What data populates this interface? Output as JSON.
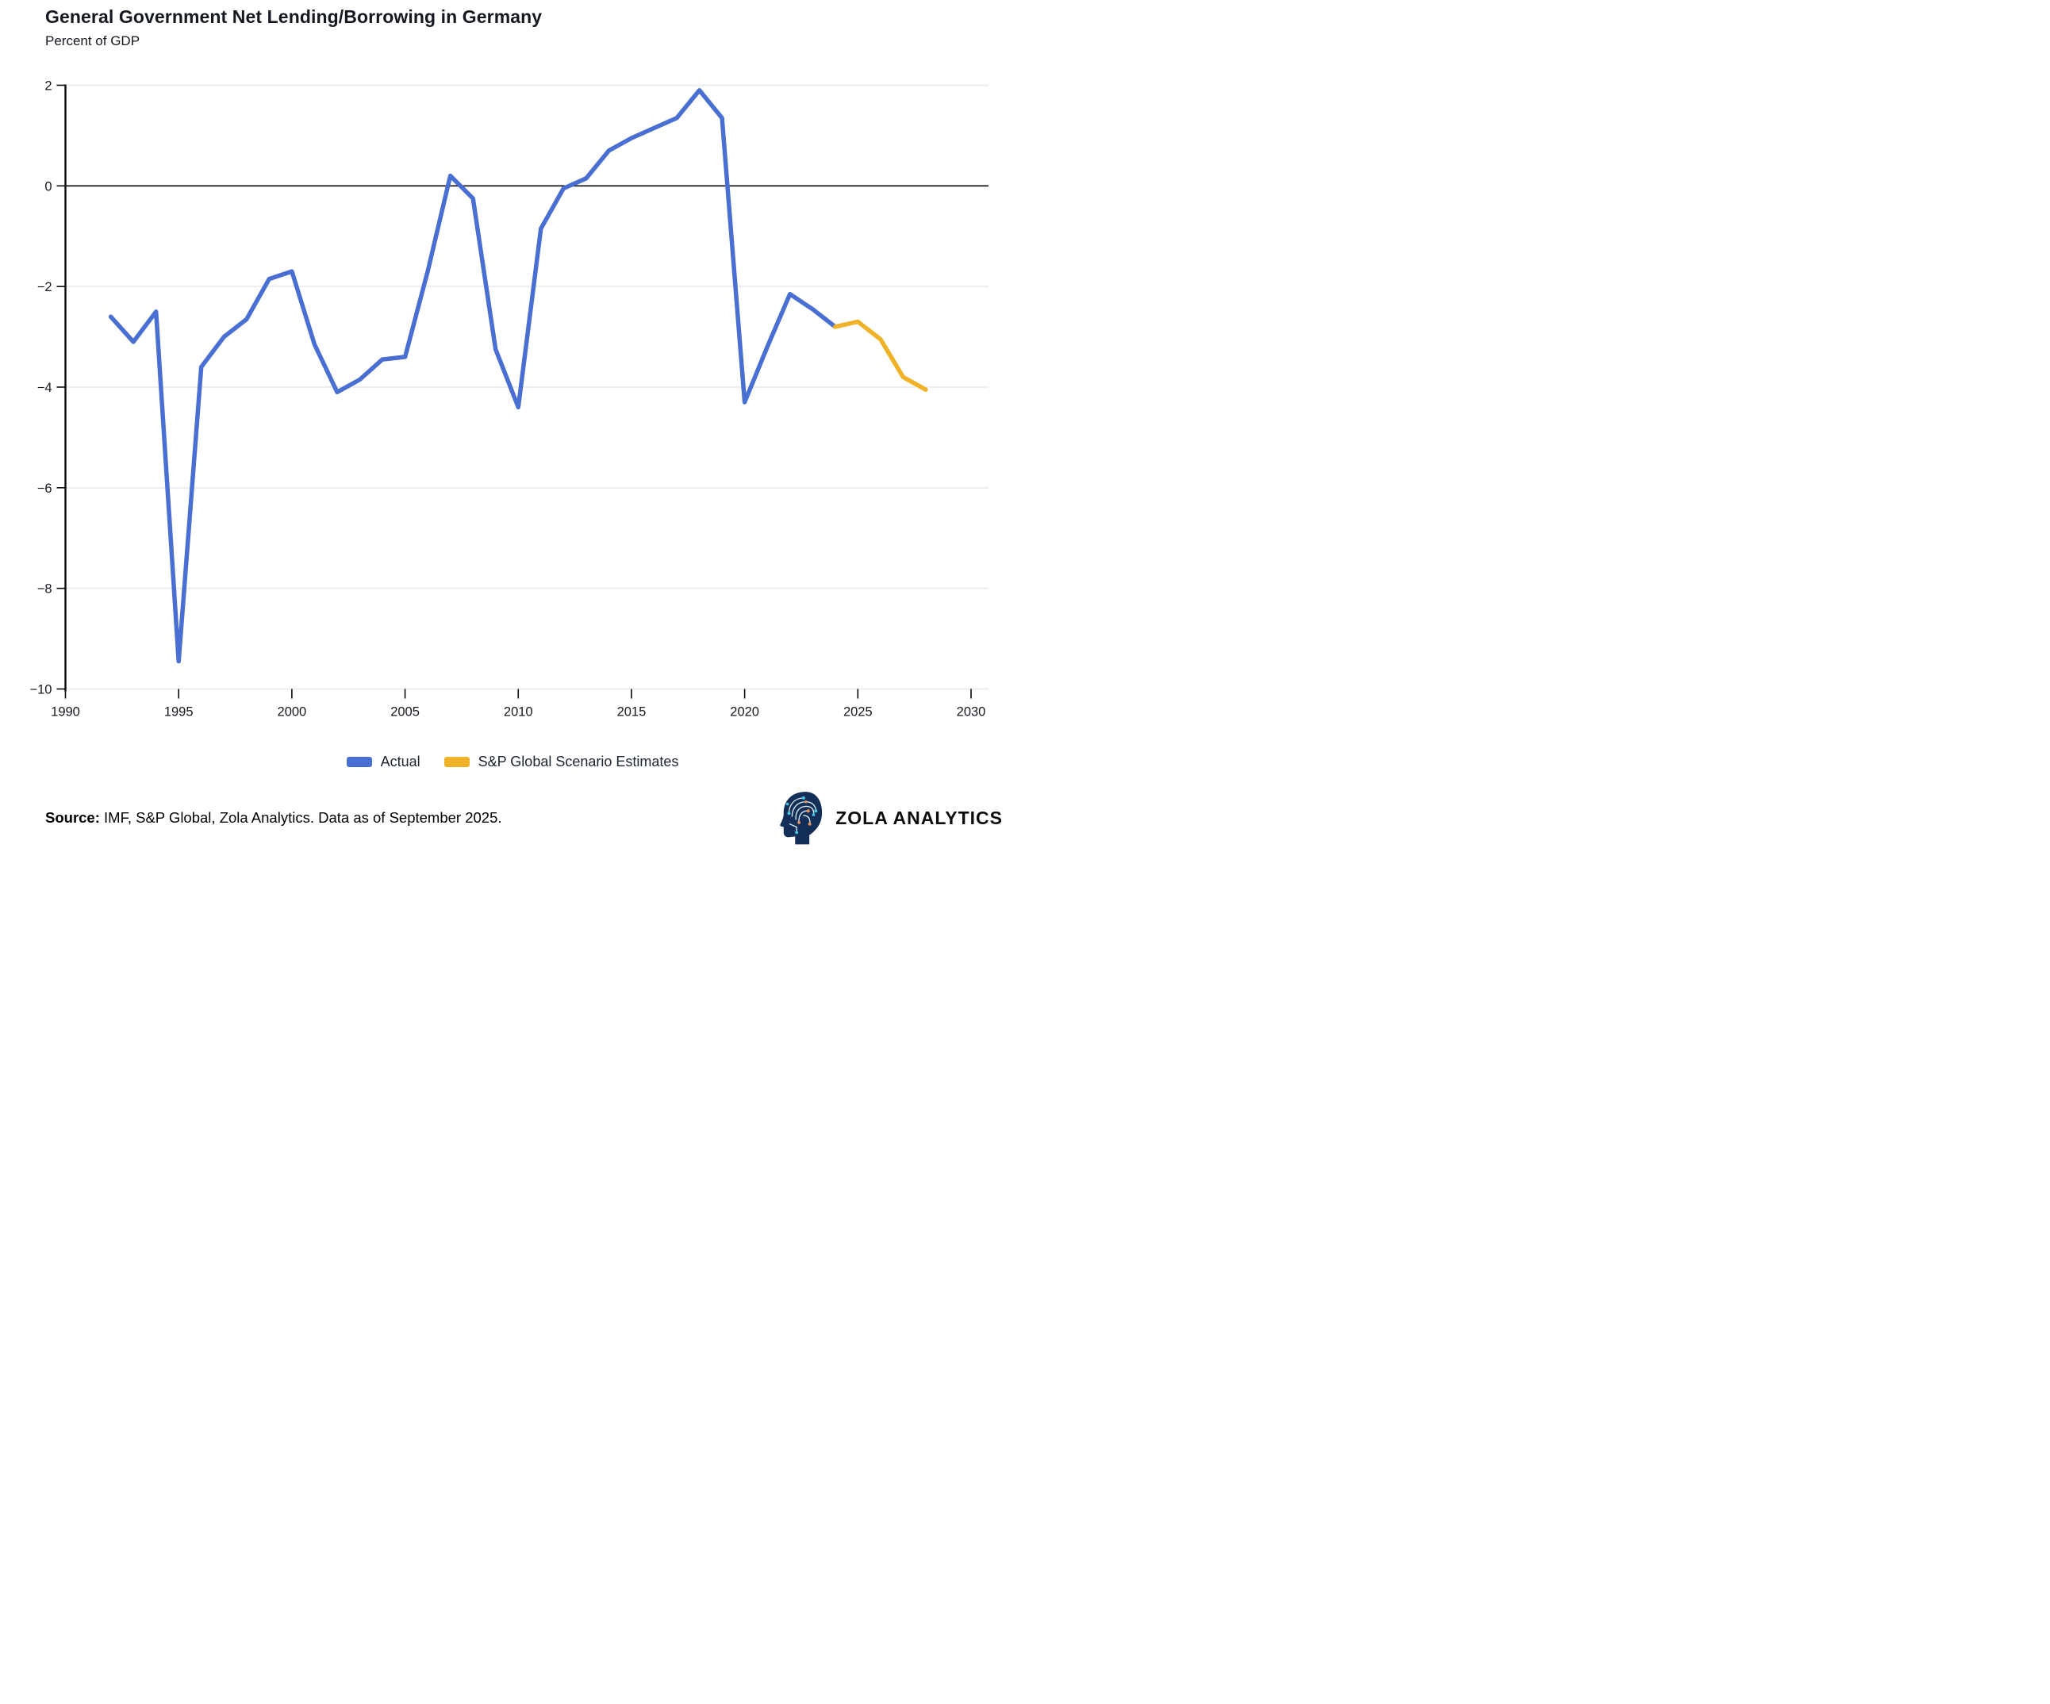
{
  "title": "General Government Net Lending/Borrowing in Germany",
  "subtitle": "Percent of GDP",
  "chart_data": {
    "type": "line",
    "title": "General Government Net Lending/Borrowing in Germany",
    "xlabel": "",
    "ylabel": "Percent of GDP",
    "xlim": [
      1990,
      2030
    ],
    "ylim": [
      -10,
      2
    ],
    "x_ticks": [
      1990,
      1995,
      2000,
      2005,
      2010,
      2015,
      2020,
      2025,
      2030
    ],
    "y_ticks": [
      2,
      0,
      -2,
      -4,
      -6,
      -8,
      -10
    ],
    "grid": "horizontal",
    "zero_line": true,
    "legend_position": "bottom",
    "series": [
      {
        "name": "Actual",
        "color": "#4a6fd2",
        "x": [
          1992,
          1993,
          1994,
          1995,
          1996,
          1997,
          1998,
          1999,
          2000,
          2001,
          2002,
          2003,
          2004,
          2005,
          2006,
          2007,
          2008,
          2009,
          2010,
          2011,
          2012,
          2013,
          2014,
          2015,
          2016,
          2017,
          2018,
          2019,
          2020,
          2021,
          2022,
          2023,
          2024
        ],
        "values": [
          -2.6,
          -3.1,
          -2.5,
          -9.45,
          -3.6,
          -3.0,
          -2.65,
          -1.85,
          -1.7,
          -3.15,
          -4.1,
          -3.85,
          -3.45,
          -3.4,
          -1.7,
          0.2,
          -0.25,
          -3.25,
          -4.4,
          -0.85,
          -0.05,
          0.15,
          0.7,
          0.95,
          1.15,
          1.35,
          1.9,
          1.35,
          -4.3,
          -3.2,
          -2.15,
          -2.45,
          -2.8
        ]
      },
      {
        "name": "S&P Global Scenario Estimates",
        "color": "#efb228",
        "x": [
          2024,
          2025,
          2026,
          2027,
          2028
        ],
        "values": [
          -2.8,
          -2.7,
          -3.05,
          -3.8,
          -4.05
        ]
      }
    ]
  },
  "legend": {
    "items": [
      {
        "label": "Actual",
        "color": "#4a6fd2"
      },
      {
        "label": "S&P Global Scenario Estimates",
        "color": "#efb228"
      }
    ]
  },
  "footer": {
    "source_label": "Source:",
    "source_text": " IMF, S&P Global, Zola Analytics. Data as of September 2025."
  },
  "brand": {
    "name": "ZOLA ANALYTICS",
    "icon": "brain-head-icon"
  },
  "colors": {
    "actual_line": "#4a6fd2",
    "scenario_line": "#efb228",
    "gridline": "#ebedee",
    "axis": "#0a0a0a",
    "logo_head": "#142f57",
    "logo_node_teal": "#43c6e0",
    "logo_node_orange": "#e8935a"
  }
}
